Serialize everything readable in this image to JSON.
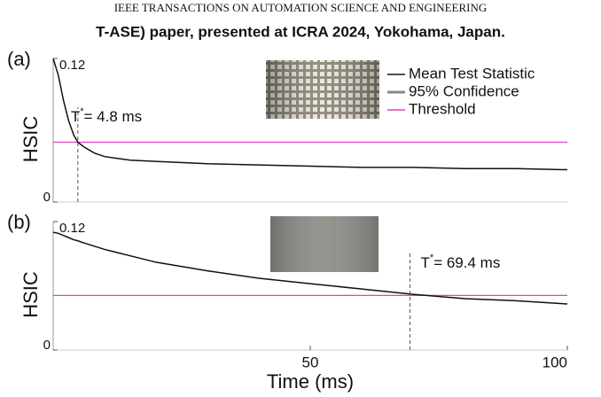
{
  "header": {
    "journal": "IEEE TRANSACTIONS ON AUTOMATION SCIENCE AND ENGINEERING",
    "note": "T-ASE) paper, presented at ICRA 2024, Yokohama, Japan."
  },
  "chart_data": [
    {
      "type": "line",
      "panel_label": "(a)",
      "ylabel": "HSIC",
      "x": [
        0,
        1,
        2,
        3,
        4,
        4.8,
        6,
        8,
        10,
        15,
        20,
        30,
        40,
        50,
        60,
        70,
        80,
        90,
        100
      ],
      "series": [
        {
          "name": "Mean Test Statistic",
          "color": "#111111",
          "values": [
            0.12,
            0.106,
            0.085,
            0.068,
            0.056,
            0.05,
            0.046,
            0.041,
            0.038,
            0.035,
            0.034,
            0.032,
            0.031,
            0.03,
            0.029,
            0.029,
            0.028,
            0.028,
            0.027
          ]
        }
      ],
      "legend": [
        {
          "name": "Mean Test Statistic",
          "color": "#111111"
        },
        {
          "name": "95% Confidence",
          "color": "#888888"
        },
        {
          "name": "Threshold",
          "color": "#e040c8"
        }
      ],
      "threshold": 0.05,
      "threshold_color": "#e040c8",
      "annotation": {
        "symbol": "T",
        "sup": "*",
        "sep": "= ",
        "value": 4.8,
        "unit": " ms"
      },
      "xlim": [
        0,
        100
      ],
      "ylim": [
        0,
        0.12
      ],
      "yticks": [
        0,
        0.12
      ]
    },
    {
      "type": "line",
      "panel_label": "(b)",
      "ylabel": "HSIC",
      "xlabel": "Time (ms)",
      "x": [
        0,
        1,
        2,
        3,
        4,
        4.8,
        6,
        8,
        10,
        15,
        20,
        30,
        40,
        50,
        60,
        70,
        80,
        90,
        100
      ],
      "series": [
        {
          "name": "Mean Test Statistic",
          "color": "#111111",
          "values": [
            0.11,
            0.109,
            0.107,
            0.105,
            0.103,
            0.102,
            0.1,
            0.097,
            0.094,
            0.088,
            0.082,
            0.074,
            0.067,
            0.062,
            0.057,
            0.052,
            0.048,
            0.046,
            0.043
          ]
        }
      ],
      "threshold": 0.051,
      "threshold_color": "#e040c8",
      "annotation": {
        "symbol": "T",
        "sup": "*",
        "sep": "= ",
        "value": 69.4,
        "unit": " ms"
      },
      "xlim": [
        0,
        100
      ],
      "xticks": [
        50,
        100
      ],
      "ylim": [
        0,
        0.12
      ],
      "yticks": [
        0,
        0.12
      ]
    }
  ]
}
